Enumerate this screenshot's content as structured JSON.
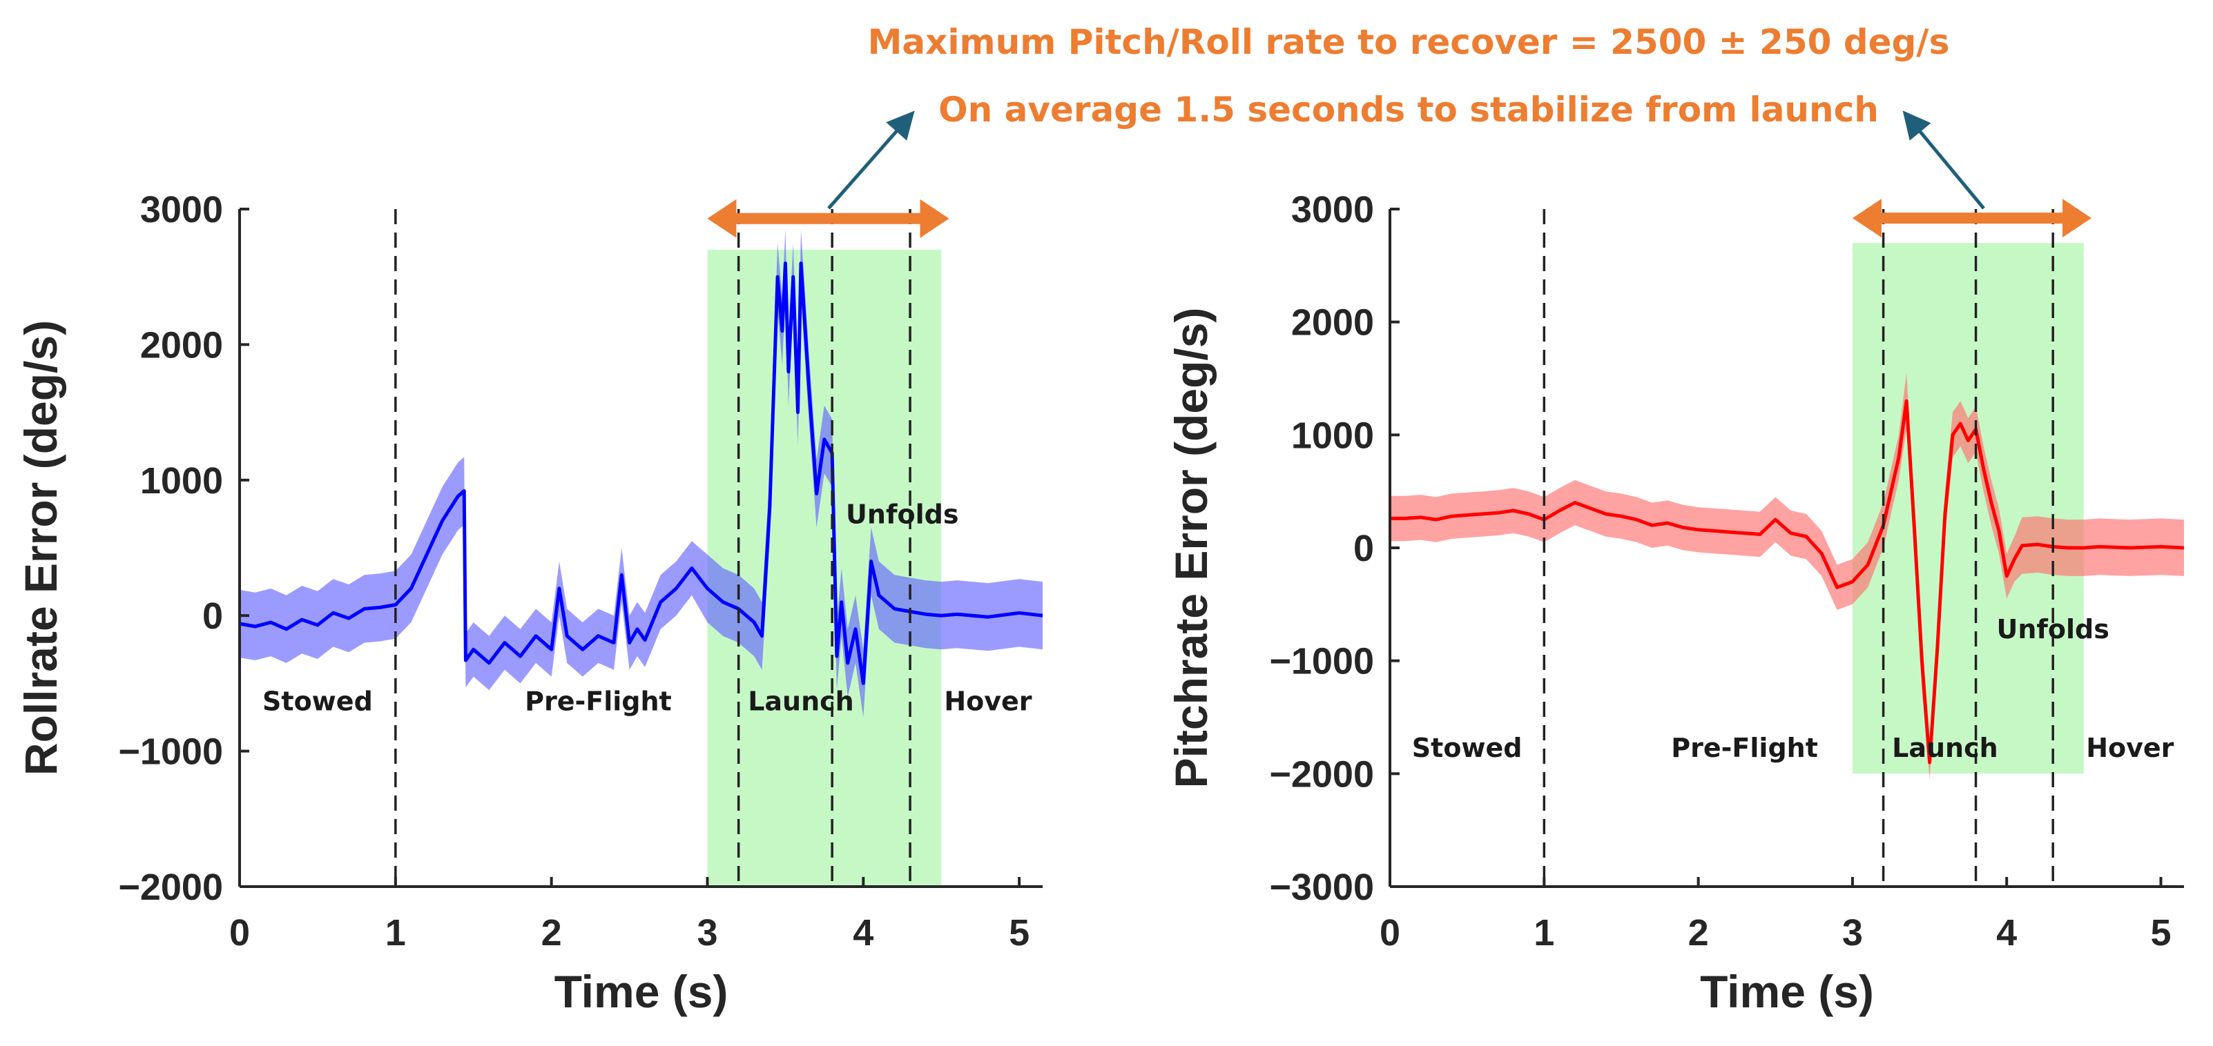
{
  "annotations": {
    "line1": "Maximum Pitch/Roll rate to recover = 2500 ± 250 deg/s",
    "line2": "On average 1.5 seconds to stabilize from launch",
    "color": "#ED7D31",
    "arrow_color": "#1F5F7A"
  },
  "chart_data": [
    {
      "type": "line",
      "name": "roll",
      "color": "#0000FF",
      "band_color": "#6666FF",
      "title": "",
      "xlabel": "Time (s)",
      "ylabel": "Rollrate Error (deg/s)",
      "xlim": [
        0,
        5.15
      ],
      "ylim": [
        -2000,
        3000
      ],
      "xticks": [
        0,
        1,
        2,
        3,
        4,
        5
      ],
      "xtick_labels": [
        "0",
        "1",
        "2",
        "3",
        "4",
        "5"
      ],
      "yticks": [
        -2000,
        -1000,
        0,
        1000,
        2000,
        3000
      ],
      "ytick_labels": [
        "−2000",
        "−1000",
        "0",
        "1000",
        "2000",
        "3000"
      ],
      "phase_lines": [
        1.0,
        3.2,
        3.8,
        4.3
      ],
      "highlight": {
        "x0": 3.0,
        "x1": 4.5,
        "y0": -2000,
        "y1": 2700,
        "color": "#C6F8C6"
      },
      "span_arrow": {
        "x0": 3.0,
        "x1": 4.55,
        "y": 2930
      },
      "phase_labels": [
        {
          "text": "Stowed",
          "x": 0.5,
          "y": -700
        },
        {
          "text": "Pre-Flight",
          "x": 2.3,
          "y": -700
        },
        {
          "text": "Launch",
          "x": 3.6,
          "y": -700
        },
        {
          "text": "Unfolds",
          "x": 4.25,
          "y": 680
        },
        {
          "text": "Hover",
          "x": 4.8,
          "y": -700
        }
      ],
      "series": {
        "x": [
          0,
          0.1,
          0.2,
          0.3,
          0.4,
          0.5,
          0.6,
          0.7,
          0.8,
          0.9,
          1.0,
          1.1,
          1.2,
          1.3,
          1.4,
          1.44,
          1.45,
          1.5,
          1.6,
          1.7,
          1.8,
          1.9,
          2.0,
          2.05,
          2.1,
          2.15,
          2.2,
          2.3,
          2.4,
          2.45,
          2.5,
          2.55,
          2.6,
          2.7,
          2.8,
          2.9,
          3.0,
          3.1,
          3.2,
          3.3,
          3.35,
          3.4,
          3.45,
          3.48,
          3.5,
          3.52,
          3.55,
          3.58,
          3.6,
          3.65,
          3.7,
          3.75,
          3.8,
          3.83,
          3.86,
          3.9,
          3.95,
          4.0,
          4.05,
          4.1,
          4.2,
          4.3,
          4.4,
          4.5,
          4.6,
          4.8,
          5.0,
          5.15
        ],
        "y": [
          -60,
          -80,
          -50,
          -100,
          -30,
          -70,
          20,
          -20,
          50,
          60,
          80,
          200,
          450,
          700,
          880,
          920,
          -330,
          -250,
          -350,
          -200,
          -300,
          -150,
          -250,
          200,
          -150,
          -200,
          -250,
          -150,
          -200,
          300,
          -200,
          -100,
          -180,
          100,
          200,
          350,
          200,
          100,
          50,
          -50,
          -150,
          800,
          2500,
          2100,
          2600,
          1800,
          2500,
          1500,
          2600,
          1700,
          900,
          1300,
          1200,
          -300,
          100,
          -350,
          -100,
          -500,
          400,
          150,
          50,
          30,
          10,
          0,
          10,
          -10,
          20,
          0
        ],
        "band_width": [
          250,
          250,
          250,
          250,
          250,
          250,
          250,
          250,
          250,
          250,
          250,
          250,
          250,
          250,
          250,
          250,
          200,
          200,
          200,
          200,
          200,
          200,
          200,
          200,
          200,
          200,
          200,
          200,
          200,
          200,
          200,
          200,
          200,
          200,
          200,
          200,
          250,
          250,
          250,
          250,
          250,
          250,
          250,
          250,
          250,
          250,
          250,
          250,
          250,
          250,
          250,
          250,
          250,
          250,
          250,
          250,
          250,
          250,
          250,
          250,
          250,
          250,
          250,
          250,
          250,
          250,
          250,
          250
        ]
      }
    },
    {
      "type": "line",
      "name": "pitch",
      "color": "#FF0000",
      "band_color": "#FF7070",
      "title": "",
      "xlabel": "Time (s)",
      "ylabel": "Pitchrate Error (deg/s)",
      "xlim": [
        0,
        5.15
      ],
      "ylim": [
        -3000,
        3000
      ],
      "xticks": [
        0,
        1,
        2,
        3,
        4,
        5
      ],
      "xtick_labels": [
        "0",
        "1",
        "2",
        "3",
        "4",
        "5"
      ],
      "yticks": [
        -3000,
        -2000,
        -1000,
        0,
        1000,
        2000,
        3000
      ],
      "ytick_labels": [
        "−3000",
        "−2000",
        "−1000",
        "0",
        "1000",
        "2000",
        "3000"
      ],
      "phase_lines": [
        1.0,
        3.2,
        3.8,
        4.3
      ],
      "highlight": {
        "x0": 3.0,
        "x1": 4.5,
        "y0": -2000,
        "y1": 2700,
        "color": "#C6F8C6"
      },
      "span_arrow": {
        "x0": 3.0,
        "x1": 4.55,
        "y": 2920
      },
      "phase_labels": [
        {
          "text": "Stowed",
          "x": 0.5,
          "y": -1850
        },
        {
          "text": "Pre-Flight",
          "x": 2.3,
          "y": -1850
        },
        {
          "text": "Launch",
          "x": 3.6,
          "y": -1850
        },
        {
          "text": "Unfolds",
          "x": 4.3,
          "y": -800
        },
        {
          "text": "Hover",
          "x": 4.8,
          "y": -1850
        }
      ],
      "series": {
        "x": [
          0,
          0.1,
          0.2,
          0.3,
          0.4,
          0.5,
          0.6,
          0.7,
          0.8,
          0.9,
          1.0,
          1.1,
          1.2,
          1.3,
          1.4,
          1.5,
          1.6,
          1.7,
          1.8,
          1.9,
          2.0,
          2.1,
          2.2,
          2.3,
          2.4,
          2.5,
          2.6,
          2.7,
          2.8,
          2.9,
          3.0,
          3.1,
          3.2,
          3.25,
          3.3,
          3.35,
          3.4,
          3.45,
          3.5,
          3.55,
          3.6,
          3.65,
          3.7,
          3.75,
          3.8,
          3.85,
          3.9,
          3.95,
          4.0,
          4.05,
          4.1,
          4.2,
          4.3,
          4.4,
          4.5,
          4.6,
          4.8,
          5.0,
          5.15
        ],
        "y": [
          260,
          260,
          270,
          250,
          280,
          290,
          300,
          310,
          330,
          300,
          250,
          330,
          400,
          350,
          300,
          280,
          250,
          200,
          220,
          180,
          160,
          150,
          140,
          130,
          120,
          250,
          130,
          100,
          -50,
          -350,
          -300,
          -150,
          200,
          500,
          800,
          1300,
          200,
          -1000,
          -1900,
          -900,
          300,
          1000,
          1100,
          950,
          1050,
          700,
          400,
          150,
          -250,
          -100,
          20,
          30,
          10,
          0,
          0,
          10,
          0,
          10,
          0
        ],
        "band_width": [
          200,
          200,
          200,
          200,
          200,
          200,
          200,
          200,
          200,
          200,
          200,
          200,
          200,
          200,
          200,
          200,
          200,
          200,
          200,
          200,
          200,
          200,
          200,
          200,
          200,
          200,
          200,
          200,
          200,
          200,
          200,
          200,
          200,
          200,
          200,
          250,
          250,
          250,
          150,
          150,
          200,
          200,
          200,
          200,
          200,
          200,
          200,
          200,
          200,
          200,
          250,
          250,
          250,
          250,
          250,
          250,
          250,
          250,
          250
        ]
      }
    }
  ]
}
